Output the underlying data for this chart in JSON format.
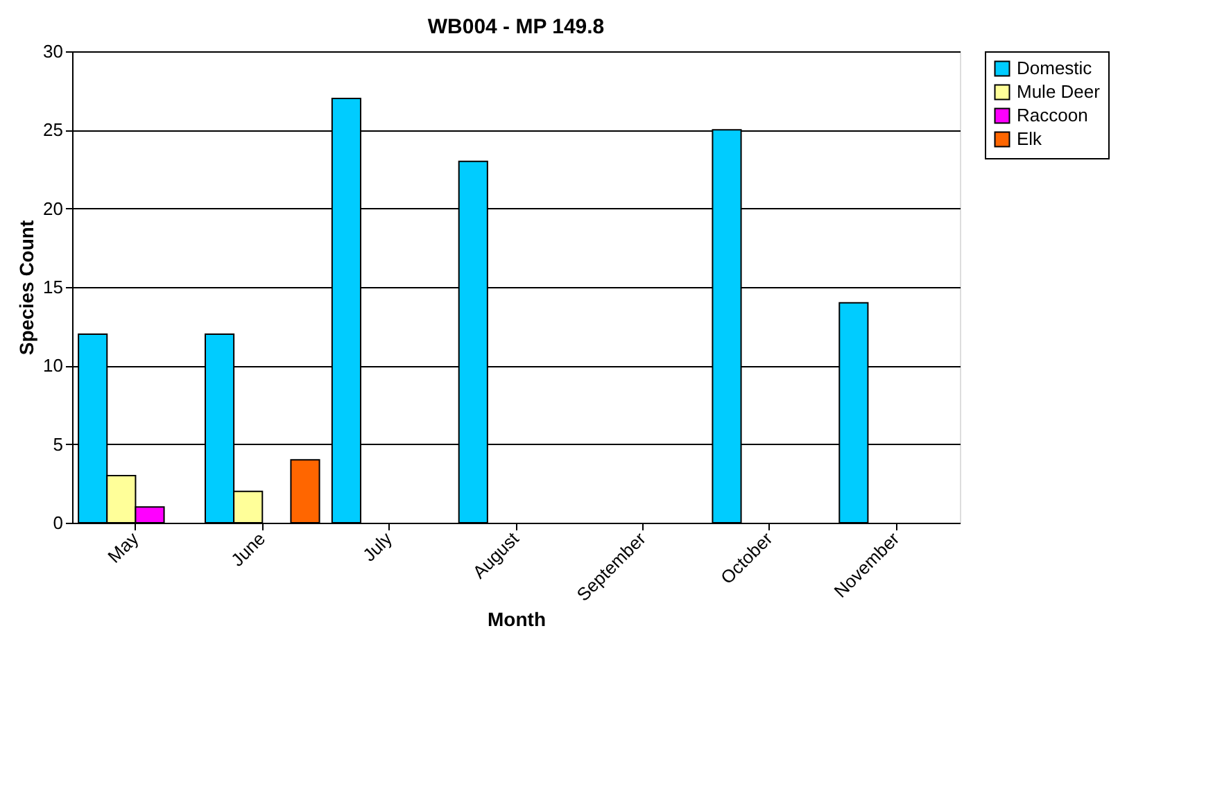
{
  "chart_data": {
    "type": "bar",
    "title": "WB004 - MP 149.8",
    "xlabel": "Month",
    "ylabel": "Species Count",
    "categories": [
      "May",
      "June",
      "July",
      "August",
      "September",
      "October",
      "November"
    ],
    "series": [
      {
        "name": "Domestic",
        "color": "#00ccff",
        "values": [
          12,
          12,
          27,
          23,
          null,
          25,
          14
        ]
      },
      {
        "name": "Mule Deer",
        "color": "#ffff99",
        "values": [
          3,
          2,
          null,
          null,
          null,
          null,
          null
        ]
      },
      {
        "name": "Raccoon",
        "color": "#ff00ff",
        "values": [
          1,
          null,
          null,
          null,
          null,
          null,
          null
        ]
      },
      {
        "name": "Elk",
        "color": "#ff6600",
        "values": [
          null,
          4,
          null,
          null,
          null,
          null,
          null
        ]
      }
    ],
    "ylim": [
      0,
      30
    ],
    "yticks": [
      0,
      5,
      10,
      15,
      20,
      25,
      30
    ],
    "grid": "y",
    "legend": "right"
  }
}
